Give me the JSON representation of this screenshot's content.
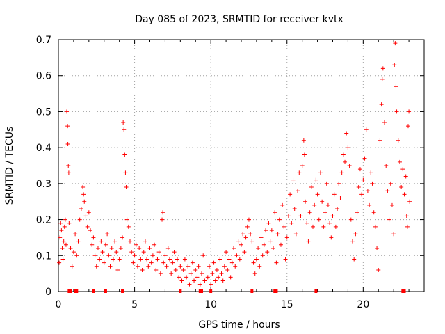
{
  "chart_data": {
    "type": "scatter",
    "title": "Day 085 of 2023, SRMTID for receiver kvtx",
    "xlabel": "GPS time / hours",
    "ylabel": "SRMTID / TECUs",
    "xlim": [
      0,
      24
    ],
    "ylim": [
      0,
      0.7
    ],
    "xticks": [
      0,
      5,
      10,
      15,
      20
    ],
    "yticks": [
      0,
      0.1,
      0.2,
      0.3,
      0.4,
      0.5,
      0.6,
      0.7
    ],
    "xtick_labels": [
      "0",
      "5",
      "10",
      "15",
      "20"
    ],
    "ytick_labels": [
      "0",
      "0.1",
      "0.2",
      "0.3",
      "0.4",
      "0.5",
      "0.6",
      "0.7"
    ],
    "grid": true,
    "marker": "+",
    "series_color": "#ff0000",
    "series": [
      {
        "name": "SRMTID",
        "points": [
          [
            0.05,
            0.08
          ],
          [
            0.1,
            0.15
          ],
          [
            0.15,
            0.19
          ],
          [
            0.2,
            0.17
          ],
          [
            0.25,
            0.12
          ],
          [
            0.3,
            0.09
          ],
          [
            0.35,
            0.14
          ],
          [
            0.4,
            0.18
          ],
          [
            0.45,
            0.2
          ],
          [
            0.5,
            0.13
          ],
          [
            0.55,
            0.5
          ],
          [
            0.6,
            0.46
          ],
          [
            0.62,
            0.41
          ],
          [
            0.65,
            0.35
          ],
          [
            0.68,
            0.33
          ],
          [
            0.7,
            0.19
          ],
          [
            0.8,
            0.12
          ],
          [
            0.9,
            0.07
          ],
          [
            1.0,
            0.11
          ],
          [
            1.1,
            0.16
          ],
          [
            1.2,
            0.1
          ],
          [
            1.3,
            0.14
          ],
          [
            1.4,
            0.2
          ],
          [
            1.5,
            0.23
          ],
          [
            1.6,
            0.29
          ],
          [
            1.65,
            0.27
          ],
          [
            1.7,
            0.25
          ],
          [
            1.8,
            0.21
          ],
          [
            1.9,
            0.18
          ],
          [
            2.0,
            0.22
          ],
          [
            2.1,
            0.17
          ],
          [
            2.2,
            0.13
          ],
          [
            2.3,
            0.15
          ],
          [
            2.4,
            0.1
          ],
          [
            2.5,
            0.07
          ],
          [
            2.6,
            0.12
          ],
          [
            2.7,
            0.09
          ],
          [
            2.8,
            0.14
          ],
          [
            2.9,
            0.11
          ],
          [
            3.0,
            0.08
          ],
          [
            3.1,
            0.13
          ],
          [
            3.2,
            0.16
          ],
          [
            3.3,
            0.1
          ],
          [
            3.4,
            0.07
          ],
          [
            3.5,
            0.12
          ],
          [
            3.6,
            0.09
          ],
          [
            3.7,
            0.14
          ],
          [
            3.8,
            0.11
          ],
          [
            3.9,
            0.06
          ],
          [
            4.0,
            0.09
          ],
          [
            4.1,
            0.12
          ],
          [
            4.2,
            0.15
          ],
          [
            4.25,
            0.47
          ],
          [
            4.3,
            0.45
          ],
          [
            4.35,
            0.38
          ],
          [
            4.4,
            0.33
          ],
          [
            4.45,
            0.29
          ],
          [
            4.5,
            0.2
          ],
          [
            4.6,
            0.18
          ],
          [
            4.7,
            0.14
          ],
          [
            4.8,
            0.11
          ],
          [
            4.9,
            0.08
          ],
          [
            5.0,
            0.1
          ],
          [
            5.1,
            0.13
          ],
          [
            5.2,
            0.07
          ],
          [
            5.3,
            0.12
          ],
          [
            5.4,
            0.09
          ],
          [
            5.5,
            0.06
          ],
          [
            5.6,
            0.11
          ],
          [
            5.7,
            0.14
          ],
          [
            5.8,
            0.09
          ],
          [
            5.9,
            0.07
          ],
          [
            6.0,
            0.12
          ],
          [
            6.1,
            0.08
          ],
          [
            6.2,
            0.1
          ],
          [
            6.3,
            0.13
          ],
          [
            6.4,
            0.06
          ],
          [
            6.5,
            0.09
          ],
          [
            6.6,
            0.11
          ],
          [
            6.7,
            0.05
          ],
          [
            6.8,
            0.2
          ],
          [
            6.85,
            0.22
          ],
          [
            6.9,
            0.08
          ],
          [
            7.0,
            0.1
          ],
          [
            7.1,
            0.07
          ],
          [
            7.2,
            0.12
          ],
          [
            7.3,
            0.09
          ],
          [
            7.4,
            0.05
          ],
          [
            7.5,
            0.08
          ],
          [
            7.6,
            0.11
          ],
          [
            7.7,
            0.06
          ],
          [
            7.8,
            0.09
          ],
          [
            7.9,
            0.04
          ],
          [
            8.0,
            0.07
          ],
          [
            8.1,
            0.03
          ],
          [
            8.2,
            0.06
          ],
          [
            8.3,
            0.09
          ],
          [
            8.4,
            0.04
          ],
          [
            8.5,
            0.07
          ],
          [
            8.6,
            0.02
          ],
          [
            8.7,
            0.05
          ],
          [
            8.8,
            0.08
          ],
          [
            8.9,
            0.03
          ],
          [
            9.0,
            0.06
          ],
          [
            9.1,
            0.04
          ],
          [
            9.2,
            0.07
          ],
          [
            9.3,
            0.02
          ],
          [
            9.4,
            0.05
          ],
          [
            9.5,
            0.1
          ],
          [
            9.6,
            0.03
          ],
          [
            9.8,
            0.04
          ],
          [
            9.9,
            0.07
          ],
          [
            10.0,
            0.02
          ],
          [
            10.1,
            0.05
          ],
          [
            10.2,
            0.08
          ],
          [
            10.3,
            0.03
          ],
          [
            10.4,
            0.06
          ],
          [
            10.5,
            0.04
          ],
          [
            10.6,
            0.09
          ],
          [
            10.7,
            0.05
          ],
          [
            10.8,
            0.03
          ],
          [
            10.9,
            0.07
          ],
          [
            11.0,
            0.11
          ],
          [
            11.1,
            0.06
          ],
          [
            11.2,
            0.09
          ],
          [
            11.3,
            0.04
          ],
          [
            11.4,
            0.08
          ],
          [
            11.5,
            0.12
          ],
          [
            11.6,
            0.07
          ],
          [
            11.7,
            0.1
          ],
          [
            11.8,
            0.14
          ],
          [
            11.9,
            0.09
          ],
          [
            12.0,
            0.13
          ],
          [
            12.1,
            0.16
          ],
          [
            12.2,
            0.11
          ],
          [
            12.3,
            0.15
          ],
          [
            12.4,
            0.18
          ],
          [
            12.5,
            0.2
          ],
          [
            12.6,
            0.16
          ],
          [
            12.7,
            0.14
          ],
          [
            12.8,
            0.08
          ],
          [
            12.9,
            0.05
          ],
          [
            13.0,
            0.09
          ],
          [
            13.1,
            0.12
          ],
          [
            13.2,
            0.07
          ],
          [
            13.3,
            0.15
          ],
          [
            13.4,
            0.1
          ],
          [
            13.5,
            0.13
          ],
          [
            13.6,
            0.17
          ],
          [
            13.7,
            0.11
          ],
          [
            13.8,
            0.19
          ],
          [
            13.9,
            0.14
          ],
          [
            14.0,
            0.17
          ],
          [
            14.1,
            0.12
          ],
          [
            14.2,
            0.22
          ],
          [
            14.3,
            0.08
          ],
          [
            14.4,
            0.16
          ],
          [
            14.5,
            0.2
          ],
          [
            14.6,
            0.13
          ],
          [
            14.7,
            0.24
          ],
          [
            14.8,
            0.18
          ],
          [
            14.9,
            0.09
          ],
          [
            15.0,
            0.15
          ],
          [
            15.1,
            0.21
          ],
          [
            15.2,
            0.27
          ],
          [
            15.3,
            0.19
          ],
          [
            15.4,
            0.31
          ],
          [
            15.5,
            0.23
          ],
          [
            15.6,
            0.16
          ],
          [
            15.7,
            0.28
          ],
          [
            15.8,
            0.33
          ],
          [
            15.9,
            0.21
          ],
          [
            16.0,
            0.35
          ],
          [
            16.1,
            0.42
          ],
          [
            16.15,
            0.38
          ],
          [
            16.2,
            0.25
          ],
          [
            16.3,
            0.19
          ],
          [
            16.4,
            0.14
          ],
          [
            16.5,
            0.22
          ],
          [
            16.6,
            0.29
          ],
          [
            16.7,
            0.18
          ],
          [
            16.8,
            0.24
          ],
          [
            16.9,
            0.31
          ],
          [
            17.0,
            0.27
          ],
          [
            17.1,
            0.2
          ],
          [
            17.2,
            0.33
          ],
          [
            17.3,
            0.25
          ],
          [
            17.4,
            0.18
          ],
          [
            17.5,
            0.22
          ],
          [
            17.6,
            0.3
          ],
          [
            17.7,
            0.24
          ],
          [
            17.8,
            0.19
          ],
          [
            17.9,
            0.15
          ],
          [
            18.0,
            0.21
          ],
          [
            18.1,
            0.27
          ],
          [
            18.2,
            0.18
          ],
          [
            18.3,
            0.23
          ],
          [
            18.4,
            0.3
          ],
          [
            18.5,
            0.26
          ],
          [
            18.6,
            0.33
          ],
          [
            18.7,
            0.38
          ],
          [
            18.8,
            0.36
          ],
          [
            18.9,
            0.44
          ],
          [
            19.0,
            0.4
          ],
          [
            19.1,
            0.35
          ],
          [
            19.2,
            0.2
          ],
          [
            19.3,
            0.14
          ],
          [
            19.4,
            0.09
          ],
          [
            19.5,
            0.16
          ],
          [
            19.6,
            0.22
          ],
          [
            19.7,
            0.29
          ],
          [
            19.8,
            0.34
          ],
          [
            19.9,
            0.27
          ],
          [
            20.0,
            0.31
          ],
          [
            20.1,
            0.37
          ],
          [
            20.2,
            0.45
          ],
          [
            20.3,
            0.28
          ],
          [
            20.4,
            0.24
          ],
          [
            20.5,
            0.33
          ],
          [
            20.6,
            0.3
          ],
          [
            20.7,
            0.22
          ],
          [
            20.8,
            0.18
          ],
          [
            20.9,
            0.12
          ],
          [
            21.0,
            0.06
          ],
          [
            21.1,
            0.42
          ],
          [
            21.2,
            0.52
          ],
          [
            21.25,
            0.59
          ],
          [
            21.3,
            0.62
          ],
          [
            21.4,
            0.47
          ],
          [
            21.5,
            0.35
          ],
          [
            21.6,
            0.28
          ],
          [
            21.7,
            0.2
          ],
          [
            21.8,
            0.3
          ],
          [
            21.9,
            0.24
          ],
          [
            22.0,
            0.16
          ],
          [
            22.05,
            0.63
          ],
          [
            22.1,
            0.69
          ],
          [
            22.15,
            0.57
          ],
          [
            22.2,
            0.5
          ],
          [
            22.3,
            0.42
          ],
          [
            22.4,
            0.36
          ],
          [
            22.5,
            0.29
          ],
          [
            22.6,
            0.34
          ],
          [
            22.7,
            0.27
          ],
          [
            22.8,
            0.32
          ],
          [
            22.85,
            0.21
          ],
          [
            22.9,
            0.18
          ],
          [
            22.95,
            0.46
          ],
          [
            23.0,
            0.5
          ],
          [
            23.05,
            0.25
          ]
        ]
      }
    ],
    "baseline_markers_x": [
      0.7,
      0.8,
      1.1,
      1.2,
      2.3,
      3.1,
      4.2,
      8.0,
      9.3,
      9.4,
      10.0,
      12.7,
      14.2,
      14.3,
      16.9,
      22.6,
      22.7
    ]
  }
}
